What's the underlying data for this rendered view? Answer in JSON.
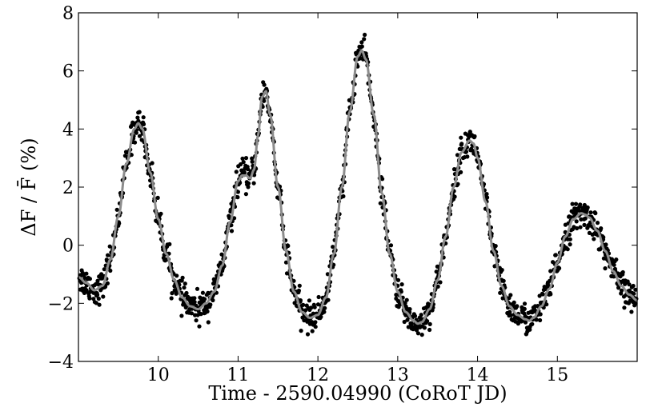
{
  "chart_data": {
    "type": "scatter",
    "title": "",
    "xlabel": "Time - 2590.04990 (CoRoT JD)",
    "ylabel": "ΔF / F̄ (%)",
    "xlim": [
      9.0,
      16.0
    ],
    "ylim": [
      -4,
      8
    ],
    "x_ticks": [
      10,
      11,
      12,
      13,
      14,
      15
    ],
    "y_ticks": [
      -4,
      -2,
      0,
      2,
      4,
      6,
      8
    ],
    "y_tick_labels": [
      "−4",
      "−2",
      "0",
      "2",
      "4",
      "6",
      "8"
    ],
    "grid": false,
    "legend": "none",
    "colors": {
      "points": "#000000",
      "model": "#8c8c8c"
    },
    "series": [
      {
        "kind": "fitted-curve",
        "x": [
          9.0,
          9.1,
          9.2,
          9.3,
          9.4,
          9.5,
          9.6,
          9.7,
          9.75,
          9.8,
          9.9,
          10.0,
          10.1,
          10.2,
          10.3,
          10.4,
          10.5,
          10.6,
          10.7,
          10.8,
          10.9,
          11.0,
          11.05,
          11.1,
          11.15,
          11.2,
          11.25,
          11.3,
          11.35,
          11.4,
          11.5,
          11.6,
          11.7,
          11.8,
          11.9,
          12.0,
          12.1,
          12.2,
          12.3,
          12.4,
          12.5,
          12.55,
          12.6,
          12.7,
          12.8,
          12.9,
          13.0,
          13.1,
          13.2,
          13.25,
          13.3,
          13.4,
          13.5,
          13.6,
          13.7,
          13.8,
          13.9,
          13.95,
          14.0,
          14.1,
          14.2,
          14.3,
          14.4,
          14.5,
          14.6,
          14.65,
          14.7,
          14.8,
          14.9,
          15.0,
          15.1,
          15.2,
          15.3,
          15.35,
          15.4,
          15.5,
          15.6,
          15.7,
          15.8,
          15.9,
          16.0
        ],
        "y": [
          -1.1,
          -1.3,
          -1.55,
          -1.4,
          -0.5,
          1.0,
          2.8,
          4.0,
          4.2,
          4.0,
          2.5,
          0.9,
          -0.3,
          -1.2,
          -1.8,
          -2.1,
          -2.2,
          -2.0,
          -1.6,
          -0.7,
          0.8,
          2.2,
          2.4,
          2.4,
          2.3,
          2.6,
          3.8,
          5.1,
          5.3,
          4.5,
          2.0,
          -0.2,
          -1.6,
          -2.3,
          -2.5,
          -2.4,
          -1.8,
          -0.3,
          2.0,
          4.6,
          6.5,
          6.7,
          6.4,
          4.5,
          1.8,
          -0.3,
          -1.6,
          -2.3,
          -2.6,
          -2.7,
          -2.65,
          -2.2,
          -1.2,
          0.3,
          2.0,
          3.2,
          3.6,
          3.5,
          3.0,
          1.5,
          -0.2,
          -1.4,
          -2.1,
          -2.4,
          -2.55,
          -2.6,
          -2.5,
          -2.1,
          -1.5,
          -0.6,
          0.3,
          0.9,
          1.1,
          1.05,
          0.95,
          0.5,
          -0.2,
          -0.9,
          -1.4,
          -1.7,
          -1.9
        ]
      },
      {
        "kind": "photometry-points",
        "scatter_sigma": 0.25,
        "point_count": 1400
      }
    ]
  }
}
